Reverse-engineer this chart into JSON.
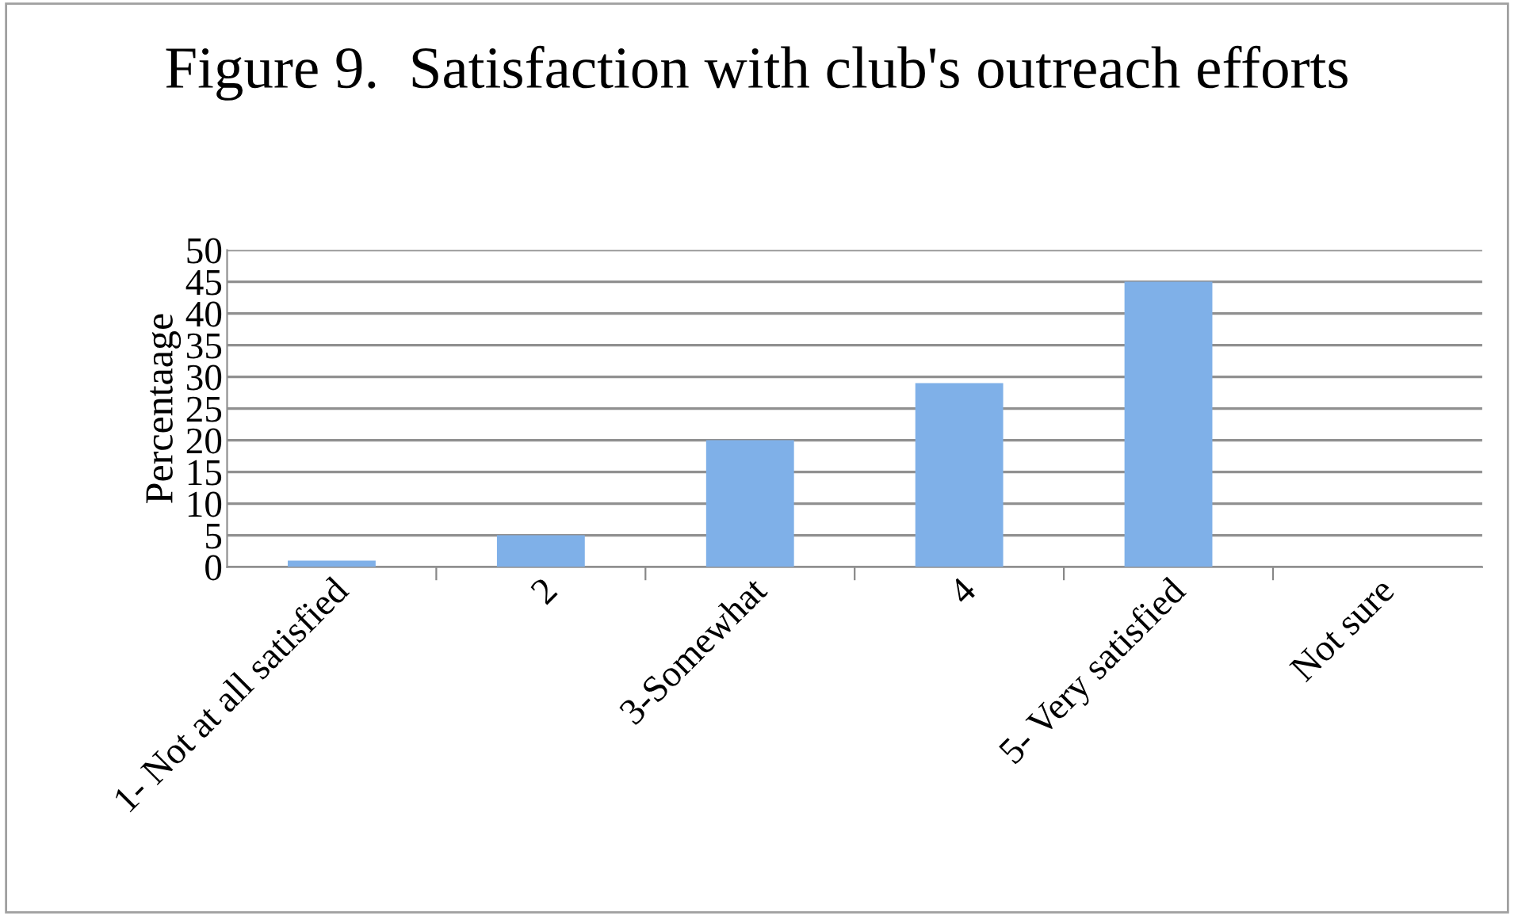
{
  "chart_data": {
    "type": "bar",
    "title": "Figure 9.  Satisfaction with club's outreach efforts",
    "ylabel": "Percentaage",
    "categories": [
      "1- Not at all satisfied",
      "2",
      "3-Somewhat",
      "4",
      "5- Very satisfied",
      "Not sure"
    ],
    "values": [
      1,
      5,
      20,
      29,
      45,
      0
    ],
    "color": "#7fb0e8",
    "ylim": [
      0,
      50
    ],
    "yticks": [
      0,
      5,
      10,
      15,
      20,
      25,
      30,
      35,
      40,
      45,
      50
    ],
    "grid": "y"
  }
}
